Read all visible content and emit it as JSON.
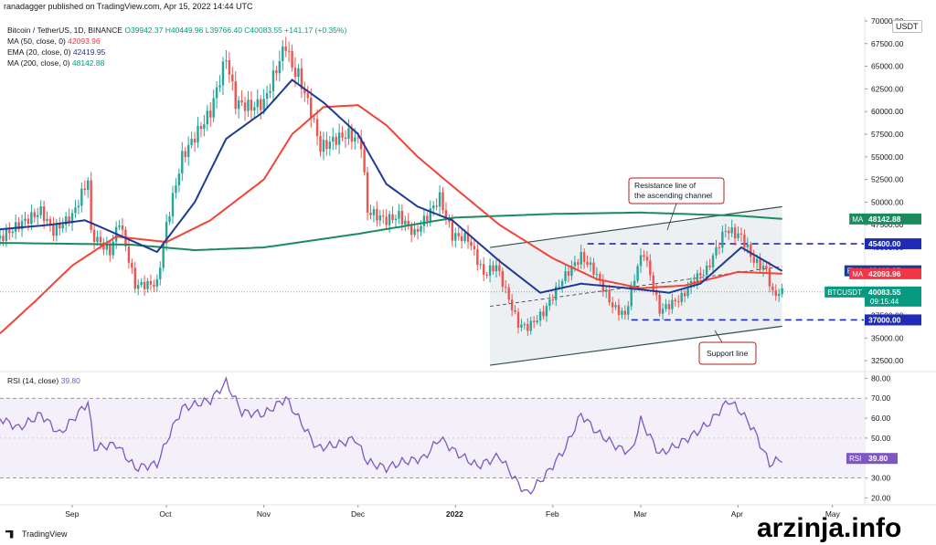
{
  "header": {
    "publisher": "ranadagger published on TradingView.com, Apr 15, 2022 14:44 UTC"
  },
  "legend": {
    "symbol": "Bitcoin / TetherUS, 1D, BINANCE",
    "ohlc": "O39942.37  H40449.96  L39766.40  C40083.55  +141.17 (+0.35%)",
    "ma50_label": "MA (50, close, 0)",
    "ma50_value": "42093.96",
    "ema20_label": "EMA (20, close, 0)",
    "ema20_value": "42419.95",
    "ma200_label": "MA (200, close, 0)",
    "ma200_value": "48142.88",
    "rsi_label": "RSI (14, close)",
    "rsi_value": "39.80"
  },
  "currency": "USDT",
  "footer": {
    "brand": "TradingView"
  },
  "watermark": "arzinja.info",
  "colors": {
    "ma50": "#f44336",
    "ema20": "#1f3a93",
    "ma200": "#1b8a5f",
    "rsi": "#7e57c2",
    "up": "#26a69a",
    "down": "#ef5350",
    "channel": "#2f4f4f"
  },
  "chart_data": [
    {
      "type": "candlestick",
      "title": "Bitcoin / TetherUS, 1D, BINANCE",
      "x_ticks": [
        "Sep",
        "Oct",
        "Nov",
        "Dec",
        "2022",
        "Feb",
        "Mar",
        "Apr",
        "May"
      ],
      "y_ticks": [
        "32500.00",
        "35000.00",
        "37500.00",
        "40000.00",
        "42500.00",
        "45000.00",
        "47500.00",
        "50000.00",
        "52500.00",
        "55000.00",
        "57500.00",
        "60000.00",
        "62500.00",
        "65000.00",
        "67500.00",
        "70000.00"
      ],
      "ylim": [
        31500,
        70500
      ],
      "x_domain": [
        "2021-08-09",
        "2022-05-11"
      ],
      "price_anchors": [
        [
          "2021-08-09",
          46000
        ],
        [
          "2021-08-15",
          47500
        ],
        [
          "2021-08-22",
          49000
        ],
        [
          "2021-08-26",
          46800
        ],
        [
          "2021-09-01",
          48500
        ],
        [
          "2021-09-06",
          52500
        ],
        [
          "2021-09-07",
          46500
        ],
        [
          "2021-09-13",
          44500
        ],
        [
          "2021-09-16",
          48000
        ],
        [
          "2021-09-21",
          40800
        ],
        [
          "2021-09-28",
          41000
        ],
        [
          "2021-10-01",
          47500
        ],
        [
          "2021-10-06",
          55000
        ],
        [
          "2021-10-15",
          60000
        ],
        [
          "2021-10-20",
          66000
        ],
        [
          "2021-10-23",
          61000
        ],
        [
          "2021-10-28",
          60500
        ],
        [
          "2021-11-01",
          61000
        ],
        [
          "2021-11-08",
          67500
        ],
        [
          "2021-11-10",
          64800
        ],
        [
          "2021-11-12",
          64000
        ],
        [
          "2021-11-16",
          60000
        ],
        [
          "2021-11-19",
          56000
        ],
        [
          "2021-11-24",
          57000
        ],
        [
          "2021-11-28",
          57500
        ],
        [
          "2021-12-02",
          56500
        ],
        [
          "2021-12-04",
          49000
        ],
        [
          "2021-12-10",
          48000
        ],
        [
          "2021-12-14",
          48500
        ],
        [
          "2021-12-19",
          46500
        ],
        [
          "2021-12-27",
          50500
        ],
        [
          "2021-12-31",
          46300
        ],
        [
          "2022-01-05",
          46000
        ],
        [
          "2022-01-10",
          42000
        ],
        [
          "2022-01-14",
          43000
        ],
        [
          "2022-01-21",
          36500
        ],
        [
          "2022-01-24",
          36200
        ],
        [
          "2022-01-29",
          37800
        ],
        [
          "2022-02-04",
          41500
        ],
        [
          "2022-02-10",
          44000
        ],
        [
          "2022-02-14",
          42500
        ],
        [
          "2022-02-20",
          38500
        ],
        [
          "2022-02-24",
          37500
        ],
        [
          "2022-02-28",
          43000
        ],
        [
          "2022-03-02",
          44500
        ],
        [
          "2022-03-07",
          38000
        ],
        [
          "2022-03-14",
          39500
        ],
        [
          "2022-03-18",
          41500
        ],
        [
          "2022-03-22",
          42500
        ],
        [
          "2022-03-28",
          47000
        ],
        [
          "2022-04-02",
          46200
        ],
        [
          "2022-04-06",
          43500
        ],
        [
          "2022-04-10",
          42500
        ],
        [
          "2022-04-12",
          39800
        ],
        [
          "2022-04-15",
          40083.55
        ]
      ],
      "indicators": {
        "ma50_anchors": [
          [
            "2021-08-09",
            35500
          ],
          [
            "2021-08-20",
            39000
          ],
          [
            "2021-09-01",
            43000
          ],
          [
            "2021-09-15",
            46200
          ],
          [
            "2021-10-01",
            45600
          ],
          [
            "2021-10-15",
            48000
          ],
          [
            "2021-11-01",
            52500
          ],
          [
            "2021-11-10",
            57500
          ],
          [
            "2021-11-20",
            60500
          ],
          [
            "2021-12-01",
            60700
          ],
          [
            "2021-12-10",
            58500
          ],
          [
            "2021-12-20",
            55000
          ],
          [
            "2022-01-01",
            51500
          ],
          [
            "2022-01-15",
            47500
          ],
          [
            "2022-02-01",
            43800
          ],
          [
            "2022-02-15",
            41500
          ],
          [
            "2022-03-01",
            40500
          ],
          [
            "2022-03-15",
            40800
          ],
          [
            "2022-04-01",
            42300
          ],
          [
            "2022-04-15",
            42100
          ]
        ],
        "ema20_anchors": [
          [
            "2021-08-09",
            47000
          ],
          [
            "2021-08-25",
            47500
          ],
          [
            "2021-09-05",
            48000
          ],
          [
            "2021-09-15",
            46500
          ],
          [
            "2021-09-28",
            44500
          ],
          [
            "2021-10-10",
            50000
          ],
          [
            "2021-10-20",
            57000
          ],
          [
            "2021-11-01",
            60000
          ],
          [
            "2021-11-10",
            63500
          ],
          [
            "2021-11-20",
            61000
          ],
          [
            "2021-12-01",
            57500
          ],
          [
            "2021-12-10",
            52000
          ],
          [
            "2021-12-20",
            49500
          ],
          [
            "2021-12-31",
            48000
          ],
          [
            "2022-01-15",
            43500
          ],
          [
            "2022-01-28",
            40000
          ],
          [
            "2022-02-10",
            41000
          ],
          [
            "2022-02-25",
            40500
          ],
          [
            "2022-03-10",
            40000
          ],
          [
            "2022-03-20",
            41000
          ],
          [
            "2022-04-02",
            45000
          ],
          [
            "2022-04-15",
            42400
          ]
        ],
        "ma200_anchors": [
          [
            "2021-08-09",
            45500
          ],
          [
            "2021-09-01",
            45400
          ],
          [
            "2021-09-20",
            45300
          ],
          [
            "2021-10-10",
            44700
          ],
          [
            "2021-11-01",
            45000
          ],
          [
            "2021-12-01",
            46500
          ],
          [
            "2022-01-01",
            48300
          ],
          [
            "2022-02-01",
            48700
          ],
          [
            "2022-03-01",
            48850
          ],
          [
            "2022-04-01",
            48500
          ],
          [
            "2022-04-15",
            48150
          ]
        ]
      },
      "price_labels": [
        {
          "tag": "MA",
          "value": "48142.88"
        },
        {
          "tag": "",
          "value": "45400.00"
        },
        {
          "tag": "EMA",
          "value": "42419.95"
        },
        {
          "tag": "MA",
          "value": "42093.96"
        },
        {
          "tag": "BTCUSDT",
          "value": "40083.55",
          "sub": "09:15:44"
        },
        {
          "tag": "",
          "value": "37000.00"
        }
      ],
      "levels": [
        45400,
        37000
      ],
      "channel": {
        "upper": [
          [
            "2022-01-12",
            45000
          ],
          [
            "2022-04-15",
            49500
          ]
        ],
        "lower": [
          [
            "2022-01-12",
            32000
          ],
          [
            "2022-04-15",
            36300
          ]
        ],
        "mid": [
          [
            "2022-01-12",
            38500
          ],
          [
            "2022-04-15",
            42900
          ]
        ]
      },
      "annotations": [
        {
          "text": "Resistance line of the ascending channel",
          "lines": [
            "Resistance line of",
            "the ascending channel"
          ]
        },
        {
          "text": "Support line",
          "lines": [
            "Support line"
          ]
        }
      ]
    },
    {
      "type": "line",
      "title": "RSI (14, close)",
      "y_ticks": [
        "20.00",
        "30.00",
        "40.00",
        "50.00",
        "60.00",
        "70.00",
        "80.00"
      ],
      "ylim": [
        17,
        82
      ],
      "bands": [
        30,
        70
      ],
      "last_value": "39.80",
      "rsi_anchors": [
        [
          "2021-08-09",
          60
        ],
        [
          "2021-08-15",
          55
        ],
        [
          "2021-08-22",
          62
        ],
        [
          "2021-08-28",
          52
        ],
        [
          "2021-09-06",
          68
        ],
        [
          "2021-09-08",
          45
        ],
        [
          "2021-09-15",
          47
        ],
        [
          "2021-09-21",
          35
        ],
        [
          "2021-09-28",
          37
        ],
        [
          "2021-10-02",
          52
        ],
        [
          "2021-10-06",
          65
        ],
        [
          "2021-10-15",
          69
        ],
        [
          "2021-10-20",
          78
        ],
        [
          "2021-10-25",
          63
        ],
        [
          "2021-11-01",
          62
        ],
        [
          "2021-11-08",
          70
        ],
        [
          "2021-11-12",
          60
        ],
        [
          "2021-11-18",
          45
        ],
        [
          "2021-11-25",
          47
        ],
        [
          "2021-11-30",
          50
        ],
        [
          "2021-12-04",
          38
        ],
        [
          "2021-12-10",
          35
        ],
        [
          "2021-12-15",
          38
        ],
        [
          "2021-12-22",
          40
        ],
        [
          "2021-12-27",
          50
        ],
        [
          "2022-01-01",
          43
        ],
        [
          "2022-01-08",
          36
        ],
        [
          "2022-01-15",
          41
        ],
        [
          "2022-01-21",
          27
        ],
        [
          "2022-01-24",
          22
        ],
        [
          "2022-01-30",
          32
        ],
        [
          "2022-02-05",
          45
        ],
        [
          "2022-02-10",
          62
        ],
        [
          "2022-02-15",
          53
        ],
        [
          "2022-02-22",
          45
        ],
        [
          "2022-02-26",
          43
        ],
        [
          "2022-03-01",
          59
        ],
        [
          "2022-03-07",
          42
        ],
        [
          "2022-03-12",
          46
        ],
        [
          "2022-03-18",
          52
        ],
        [
          "2022-03-23",
          58
        ],
        [
          "2022-03-29",
          69
        ],
        [
          "2022-04-02",
          63
        ],
        [
          "2022-04-06",
          54
        ],
        [
          "2022-04-11",
          37
        ],
        [
          "2022-04-15",
          39.8
        ]
      ]
    }
  ]
}
